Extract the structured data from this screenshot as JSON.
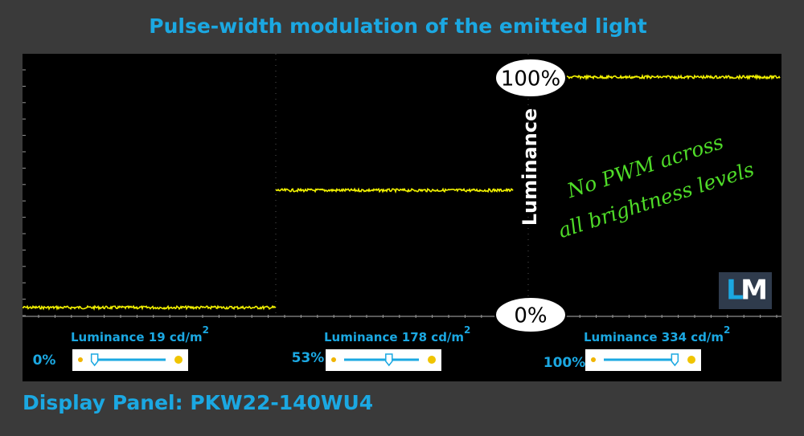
{
  "header": {
    "title": "Pulse-width modulation of the emitted light"
  },
  "scope": {
    "top_label": "100%",
    "bottom_label": "0%",
    "axis_label": "Luminance",
    "annotation": [
      "No PWM across",
      "all brightness levels"
    ],
    "logo": [
      "L",
      "M"
    ]
  },
  "panels": [
    {
      "luminance": "Luminance  19 cd/m",
      "exponent": "2",
      "brightness": "0%"
    },
    {
      "luminance": "Luminance  178 cd/m",
      "exponent": "2",
      "brightness": "53%"
    },
    {
      "luminance": "Luminance  334 cd/m",
      "exponent": "2",
      "brightness": "100%"
    }
  ],
  "footer": {
    "text": "Display Panel: PKW22-140WU4"
  }
}
